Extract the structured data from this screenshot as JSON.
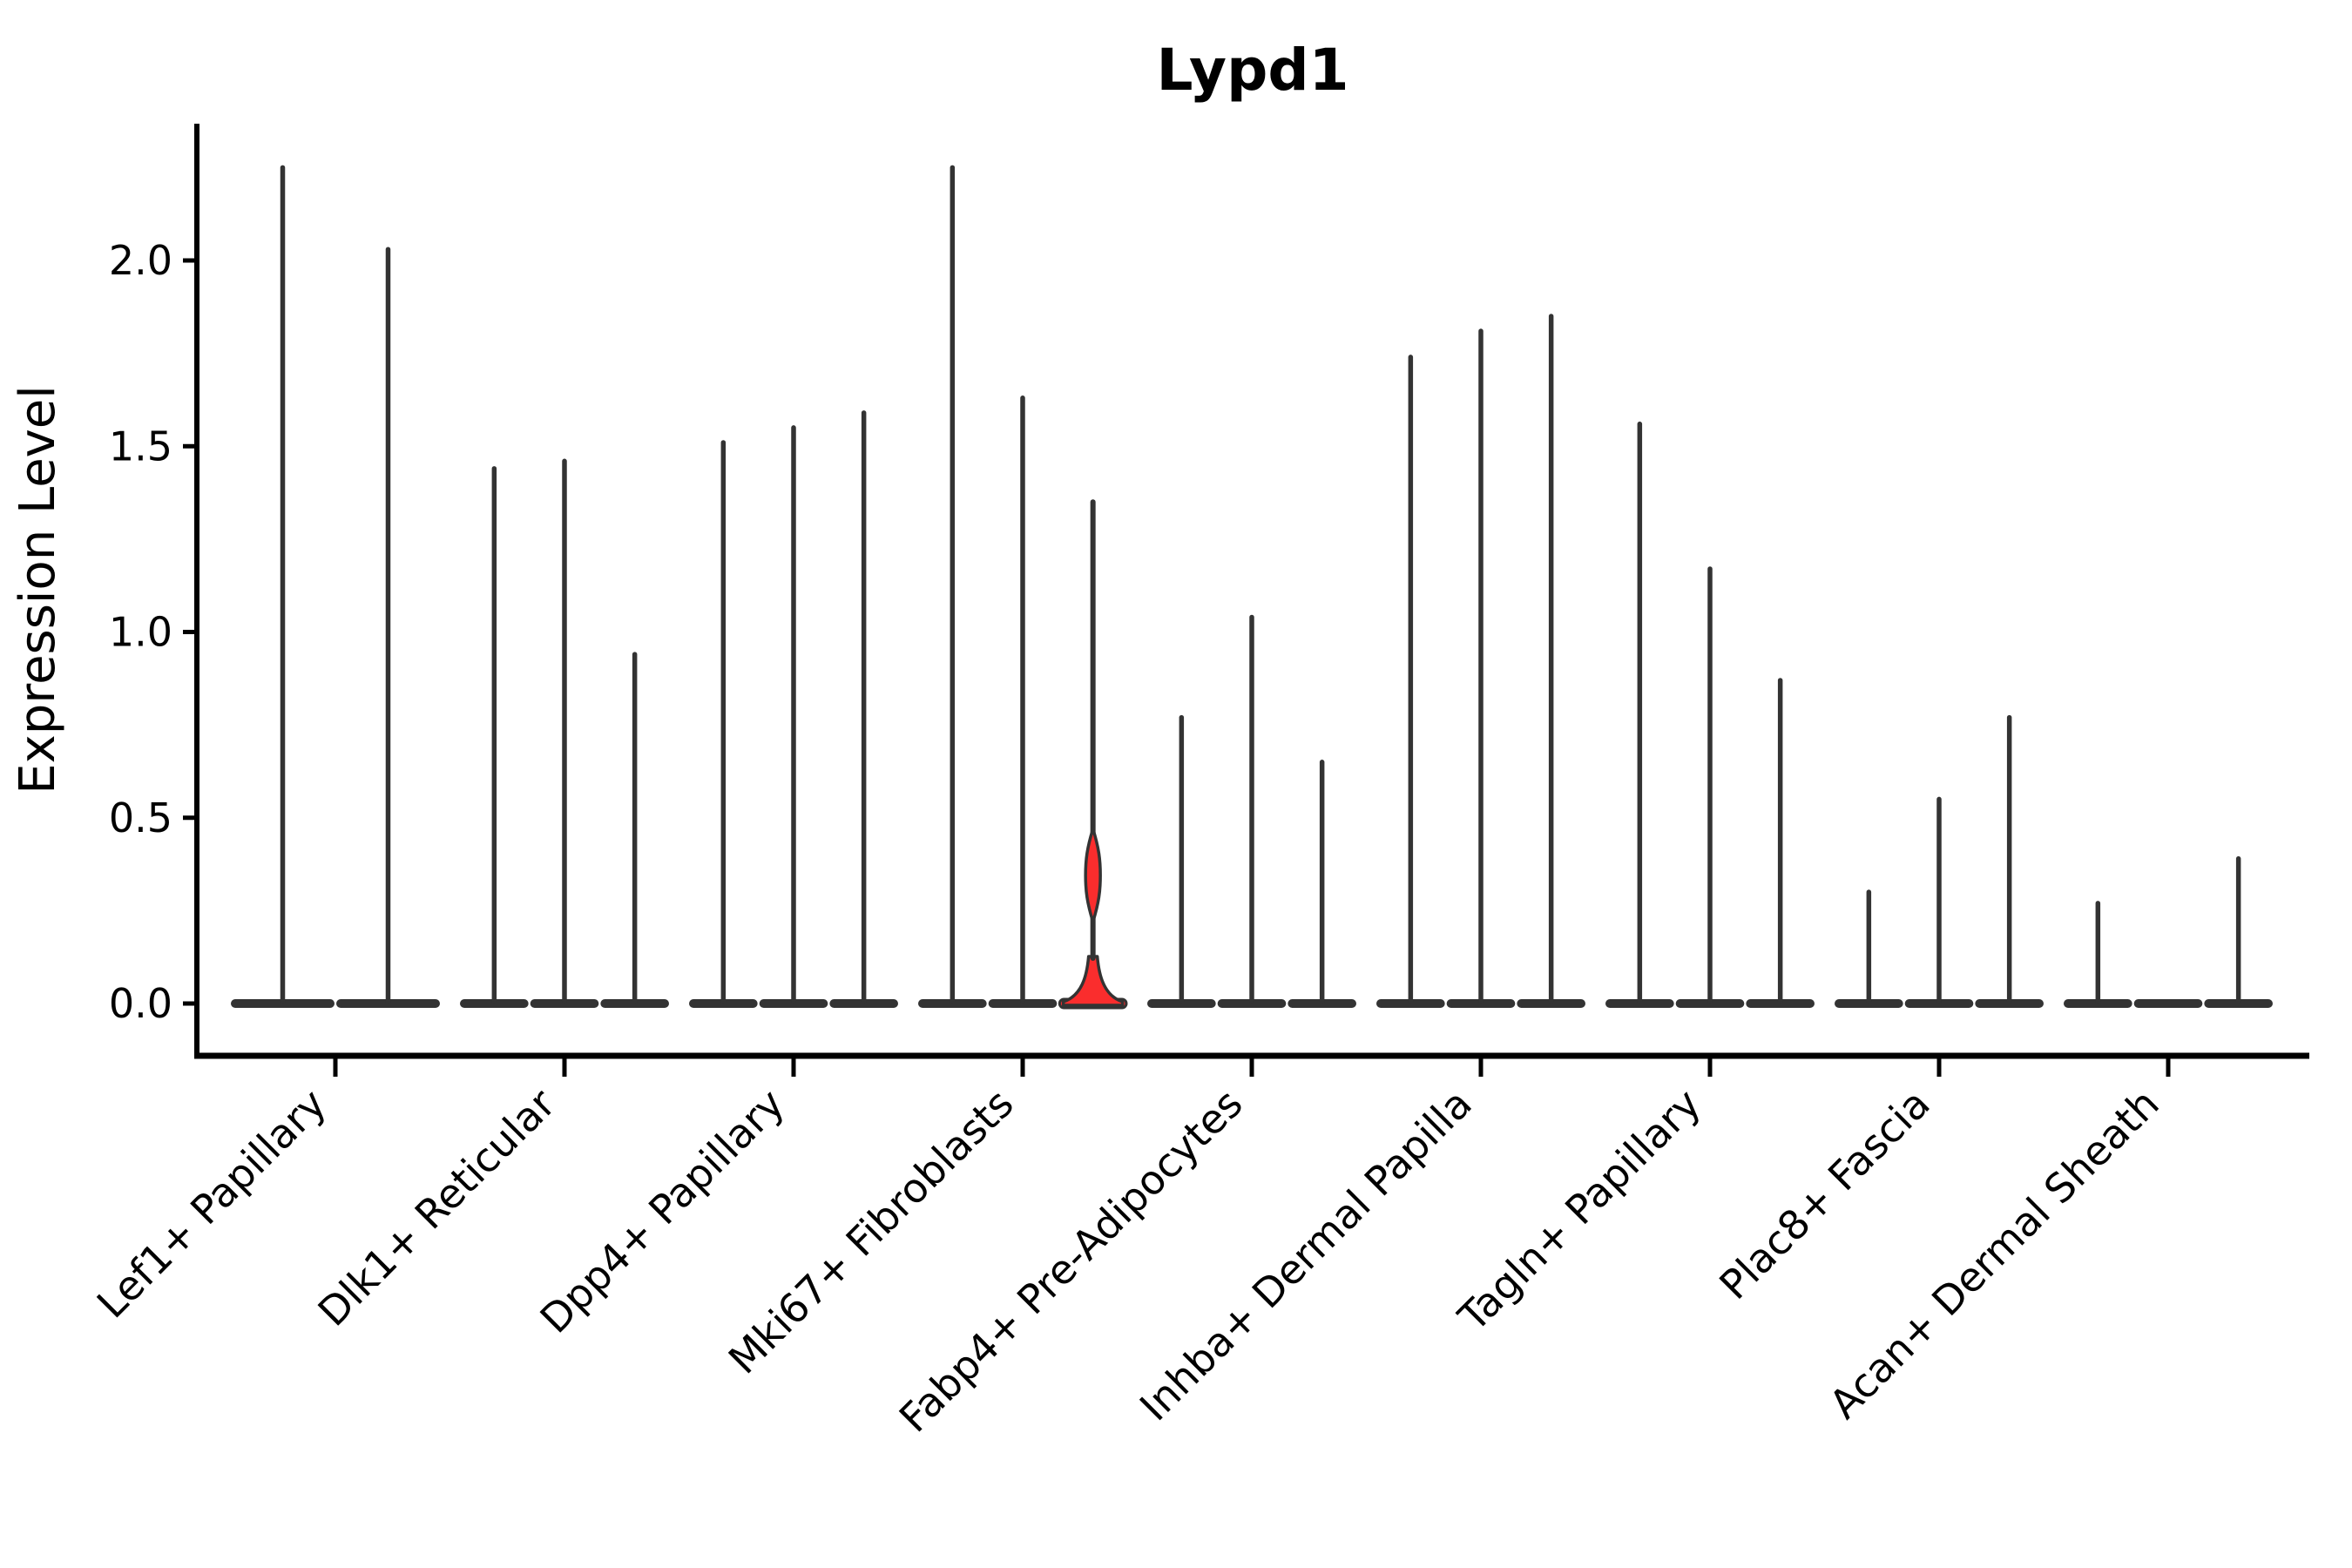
{
  "chart_data": {
    "type": "violin",
    "title": "Lypd1",
    "xlabel": "",
    "ylabel": "Expression Level",
    "ylim": [
      -0.14,
      2.37
    ],
    "yticks": [
      0.0,
      0.5,
      1.0,
      1.5,
      2.0
    ],
    "grid": false,
    "legend": "none",
    "categories": [
      "Lef1+ Papillary",
      "Dlk1+ Reticular",
      "Dpp4+ Papillary",
      "Mki67+ Fibroblasts",
      "Fabp4+ Pre-Adipocytes",
      "Inhba+ Dermal Papilla",
      "Tagln+ Papillary",
      "Plac8+ Fascia",
      "Acan+ Dermal Sheath"
    ],
    "groups": [
      {
        "category": "Lef1+ Papillary",
        "violins": [
          {
            "max": 2.25
          },
          {
            "max": 2.03
          }
        ]
      },
      {
        "category": "Dlk1+ Reticular",
        "violins": [
          {
            "max": 1.44
          },
          {
            "max": 1.46
          },
          {
            "max": 0.94
          }
        ]
      },
      {
        "category": "Dpp4+ Papillary",
        "violins": [
          {
            "max": 1.51
          },
          {
            "max": 1.55
          },
          {
            "max": 1.59
          }
        ]
      },
      {
        "category": "Mki67+ Fibroblasts",
        "violins": [
          {
            "max": 2.25
          },
          {
            "max": 1.63
          },
          {
            "max": 1.35,
            "highlight": true,
            "bulge": {
              "from": 0.22,
              "to": 0.47,
              "peak": 0.34
            }
          }
        ]
      },
      {
        "category": "Fabp4+ Pre-Adipocytes",
        "violins": [
          {
            "max": 0.77
          },
          {
            "max": 1.04
          },
          {
            "max": 0.65
          }
        ]
      },
      {
        "category": "Inhba+ Dermal Papilla",
        "violins": [
          {
            "max": 1.74
          },
          {
            "max": 1.81
          },
          {
            "max": 1.85
          }
        ]
      },
      {
        "category": "Tagln+ Papillary",
        "violins": [
          {
            "max": 1.56
          },
          {
            "max": 1.17
          },
          {
            "max": 0.87
          }
        ]
      },
      {
        "category": "Plac8+ Fascia",
        "violins": [
          {
            "max": 0.3
          },
          {
            "max": 0.55
          },
          {
            "max": 0.77
          }
        ]
      },
      {
        "category": "Acan+ Dermal Sheath",
        "violins": [
          {
            "max": 0.27
          },
          {
            "max": 0.0
          },
          {
            "max": 0.39
          }
        ]
      }
    ],
    "colors": {
      "violin_edge": "#333333",
      "highlight_fill": "#fa2d2d",
      "axis": "#000000",
      "text": "#000000",
      "background": "#ffffff"
    }
  }
}
